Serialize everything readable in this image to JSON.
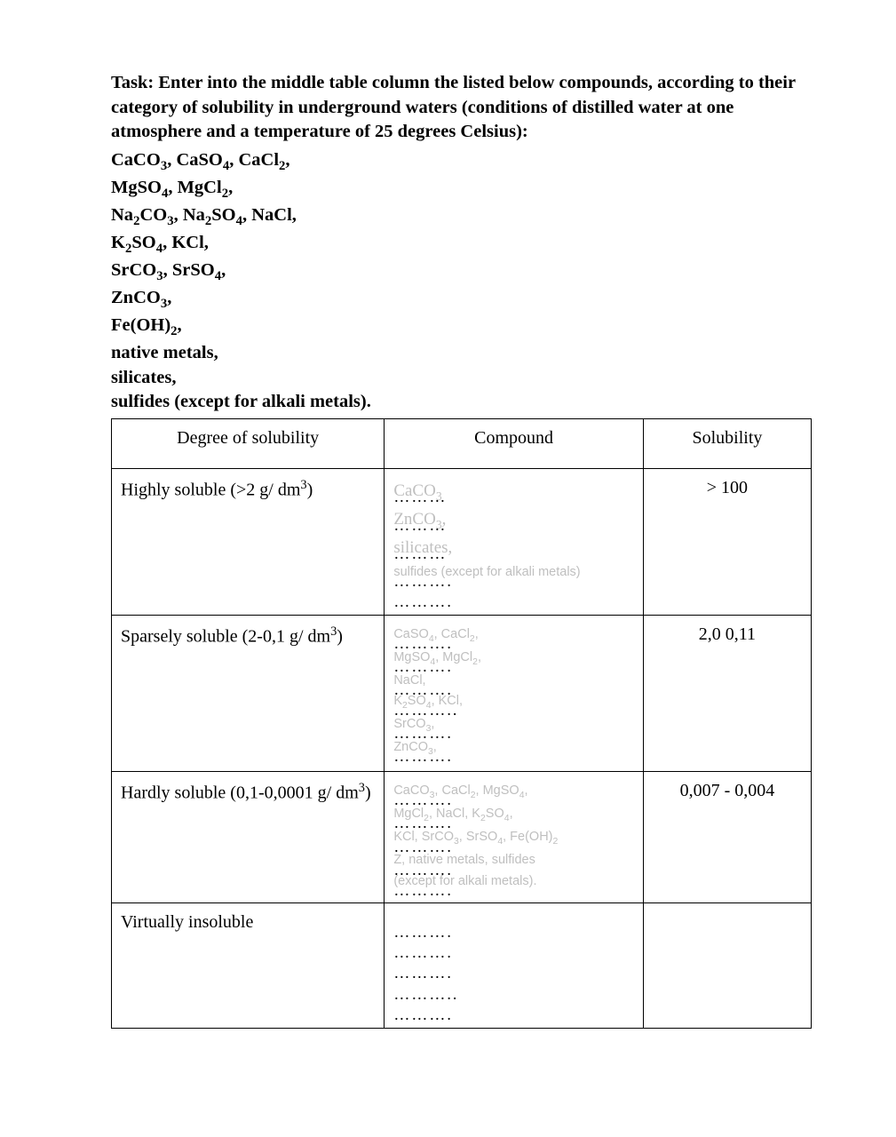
{
  "task": {
    "intro": "Task: Enter into the middle table column the listed below compounds, according to their category of solubility in underground waters (conditions of distilled water at one atmosphere and a temperature of 25 degrees Celsius):",
    "lines": [
      "CaCO₃, CaSO₄, CaCl₂,",
      "MgSO₄, MgCl₂,",
      "Na₂CO₃, Na₂SO₄, NaCl,",
      "K₂SO₄, KCl,",
      "SrCO₃, SrSO₄,",
      "ZnCO₃,",
      "Fe(OH)₂,",
      "native metals,",
      "silicates,",
      "sulfides (except for alkali metals)."
    ]
  },
  "table": {
    "headers": [
      "Degree of solubility",
      "Compound",
      "Solubility"
    ],
    "rows": [
      {
        "degree": "Highly soluble (>2 g/ dm³)",
        "compound_hints": [
          {
            "t": "CaCO₃",
            "big": true,
            "dots": "………"
          },
          {
            "t": "ZnCO₃,",
            "big": true,
            "dots": "………"
          },
          {
            "t": "silicates,",
            "big": true,
            "dots": "………"
          },
          {
            "t": "sulfides (except for alkali metals)",
            "dots": "………."
          },
          {
            "t": "",
            "dots": "………."
          }
        ],
        "sol": "> 100"
      },
      {
        "degree": "Sparsely soluble (2-0,1 g/ dm³)",
        "compound_hints": [
          {
            "t": "CaSO₄, CaCl₂,",
            "dots": "………."
          },
          {
            "t": "MgSO₄, MgCl₂,",
            "dots": "………."
          },
          {
            "t": "NaCl,",
            "dots": "………."
          },
          {
            "t": "K₂SO₄, KCl,",
            "dots": "……….."
          },
          {
            "t": "SrCO₃,",
            "dots": "………."
          },
          {
            "t": "ZnCO₃,",
            "dots": "………."
          }
        ],
        "sol": "2,0 0,11"
      },
      {
        "degree": "Hardly soluble (0,1-0,0001 g/ dm³)",
        "compound_hints": [
          {
            "t": "CaCO₃, CaCl₂, MgSO₄,",
            "dots": "………."
          },
          {
            "t": "MgCl₂, NaCl, K₂SO₄,",
            "dots": "………."
          },
          {
            "t": "KCl, SrCO₃, SrSO₄, Fe(OH)₂",
            "dots": "………."
          },
          {
            "t": "Z, native metals, sulfides",
            "dots": "………."
          },
          {
            "t": "(except for alkali metals).",
            "dots": "………."
          }
        ],
        "sol": "0,007 - 0,004"
      },
      {
        "degree": "Virtually insoluble",
        "compound_hints": [
          {
            "t": "",
            "dots": "………."
          },
          {
            "t": "",
            "dots": "………."
          },
          {
            "t": "",
            "dots": "………."
          },
          {
            "t": "",
            "dots": "……….."
          },
          {
            "t": "",
            "dots": "………."
          }
        ],
        "sol": ""
      }
    ]
  },
  "colors": {
    "text": "#000000",
    "faded": "#bfbfbf",
    "border": "#000000",
    "background": "#ffffff"
  }
}
